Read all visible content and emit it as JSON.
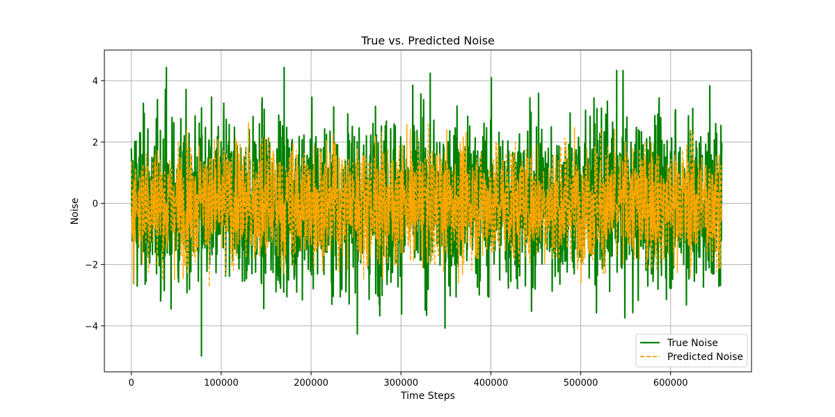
{
  "chart_data": {
    "type": "line",
    "title": "True vs. Predicted Noise",
    "xlabel": "Time Steps",
    "ylabel": "Noise",
    "xlim": [
      -30000,
      690000
    ],
    "ylim": [
      -5.5,
      5.0
    ],
    "x_ticks": [
      0,
      100000,
      200000,
      300000,
      400000,
      500000,
      600000
    ],
    "x_tick_labels": [
      "0",
      "100000",
      "200000",
      "300000",
      "400000",
      "500000",
      "600000"
    ],
    "y_ticks": [
      -4,
      -2,
      0,
      2,
      4
    ],
    "y_tick_labels": [
      "−4",
      "−2",
      "0",
      "2",
      "4"
    ],
    "grid": true,
    "legend_position": "lower-right",
    "x_range": [
      0,
      657000
    ],
    "series": [
      {
        "name": "True Noise",
        "color": "#008000",
        "linestyle": "solid",
        "approx_min": -5.0,
        "approx_max": 4.45,
        "typical_band": [
          -3.5,
          3.5
        ]
      },
      {
        "name": "Predicted Noise",
        "color": "#FFA500",
        "linestyle": "dashed",
        "approx_min": -3.2,
        "approx_max": 3.2,
        "typical_band": [
          -2.5,
          2.5
        ]
      }
    ],
    "notable_points": [
      {
        "series": "True Noise",
        "x": 78000,
        "y": -5.0
      },
      {
        "series": "True Noise",
        "x": 39000,
        "y": 4.45
      },
      {
        "series": "True Noise",
        "x": 170000,
        "y": 4.45
      },
      {
        "series": "True Noise",
        "x": 540000,
        "y": 4.35
      }
    ]
  }
}
